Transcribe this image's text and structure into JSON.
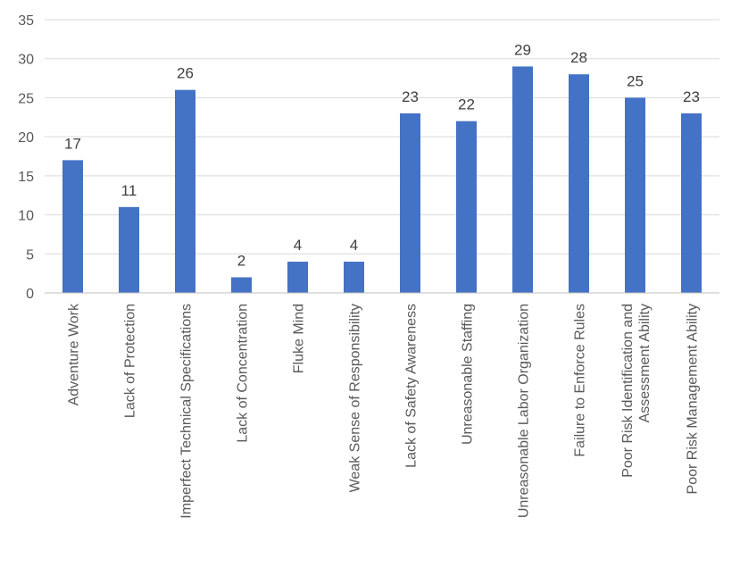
{
  "chart_data": {
    "type": "bar",
    "categories": [
      [
        "Adventure Work"
      ],
      [
        "Lack of Protection"
      ],
      [
        "Imperfect Technical Specifications"
      ],
      [
        "Lack of Concentration"
      ],
      [
        "Fluke Mind"
      ],
      [
        "Weak Sense of Responsibility"
      ],
      [
        "Lack of Safety Awareness"
      ],
      [
        "Unreasonable Staffing"
      ],
      [
        "Unreasonable Labor Organization"
      ],
      [
        "Failure to Enforce Rules"
      ],
      [
        "Poor Risk Identification and",
        "Assessment Ability"
      ],
      [
        "Poor Risk Management Ability"
      ]
    ],
    "values": [
      17,
      11,
      26,
      2,
      4,
      4,
      23,
      22,
      29,
      28,
      25,
      23
    ],
    "data_labels": [
      "17",
      "11",
      "26",
      "2",
      "4",
      "4",
      "23",
      "22",
      "29",
      "28",
      "25",
      "23"
    ],
    "yticks": [
      "0",
      "5",
      "10",
      "15",
      "20",
      "25",
      "30",
      "35"
    ],
    "ylim": [
      0,
      35
    ],
    "grid": true,
    "bar_color": "#4472C4",
    "grid_color": "#D9D9D9",
    "title": "",
    "xlabel": "",
    "ylabel": ""
  }
}
